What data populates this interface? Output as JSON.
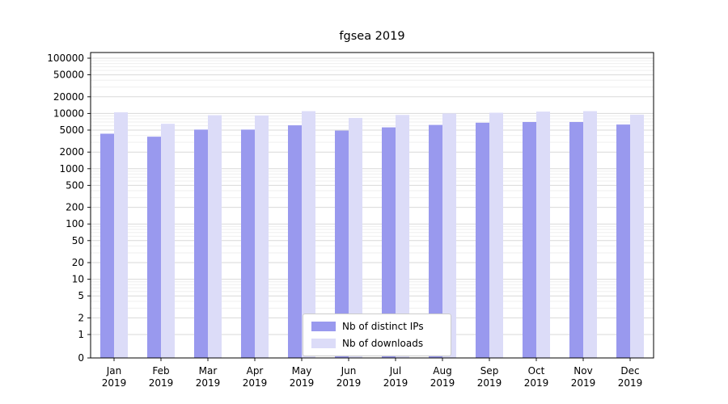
{
  "chart_data": {
    "type": "bar",
    "title": "fgsea 2019",
    "xlabel": "",
    "ylabel": "",
    "scale": "symlog",
    "grid": true,
    "legend_position": "lower-center-inside",
    "ylim": [
      0,
      130000
    ],
    "y_ticks": [
      0,
      1,
      2,
      5,
      10,
      20,
      50,
      100,
      200,
      500,
      1000,
      2000,
      5000,
      10000,
      20000,
      50000,
      100000
    ],
    "categories": [
      "Jan 2019",
      "Feb 2019",
      "Mar 2019",
      "Apr 2019",
      "May 2019",
      "Jun 2019",
      "Jul 2019",
      "Aug 2019",
      "Sep 2019",
      "Oct 2019",
      "Nov 2019",
      "Dec 2019"
    ],
    "series": [
      {
        "name": "Nb of distinct IPs",
        "color": "#9999ee",
        "values": [
          4300,
          3800,
          5100,
          5100,
          6100,
          4900,
          5600,
          6200,
          6800,
          7000,
          7000,
          6300
        ]
      },
      {
        "name": "Nb of downloads",
        "color": "#dcdcf8",
        "values": [
          10500,
          6500,
          9300,
          9200,
          11000,
          8300,
          9400,
          10000,
          10300,
          10800,
          11000,
          9500
        ]
      }
    ],
    "colors": {
      "grid_major": "#d9d9d9",
      "grid_minor": "#efefef",
      "axis": "#000000",
      "text": "#000000"
    }
  }
}
